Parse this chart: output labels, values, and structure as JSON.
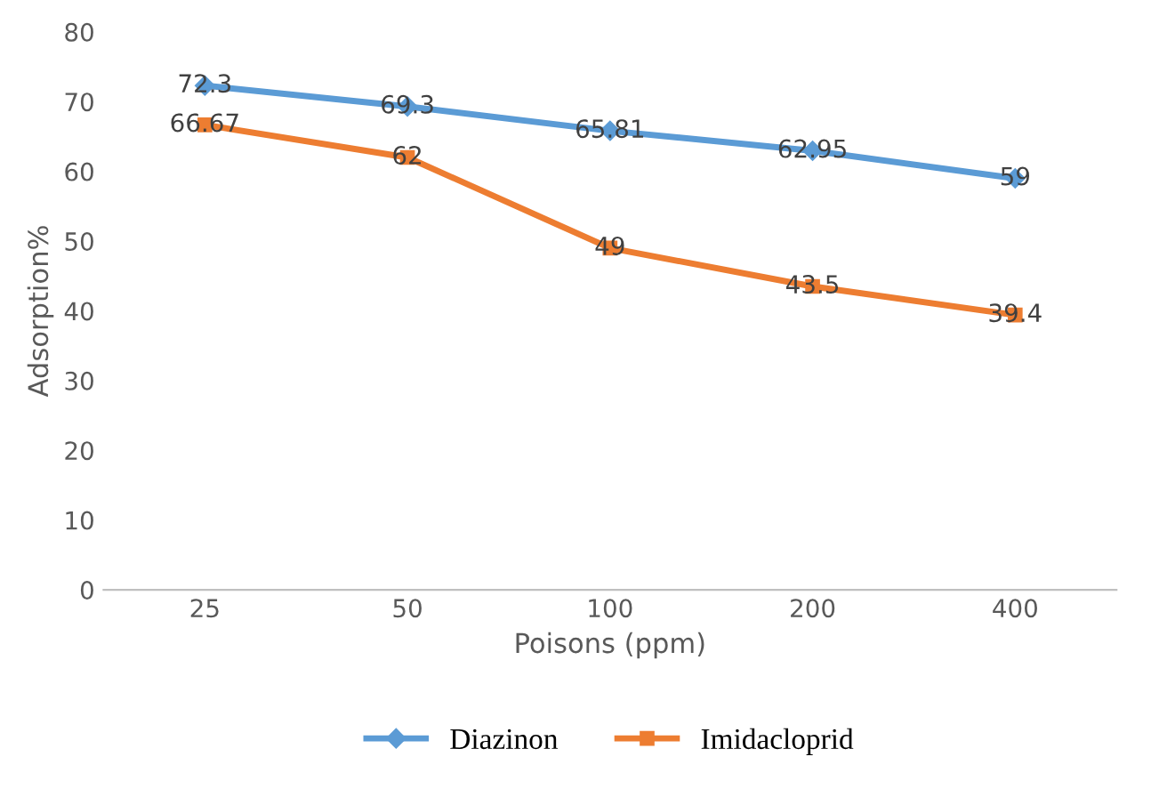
{
  "chart_data": {
    "type": "line",
    "xlabel": "Poisons (ppm)",
    "ylabel": "Adsorption%",
    "categories": [
      "25",
      "50",
      "100",
      "200",
      "400"
    ],
    "series": [
      {
        "name": "Diazinon",
        "color": "#5b9bd5",
        "marker": "diamond",
        "values": [
          72.3,
          69.3,
          65.81,
          62.95,
          59
        ]
      },
      {
        "name": "Imidacloprid",
        "color": "#ed7d31",
        "marker": "square",
        "values": [
          66.67,
          62,
          49,
          43.5,
          39.4
        ]
      }
    ],
    "ylim": [
      0,
      80
    ],
    "yticks": [
      0,
      10,
      20,
      30,
      40,
      50,
      60,
      70,
      80
    ],
    "data_labels": true,
    "legend": "bottom",
    "grid": false
  }
}
